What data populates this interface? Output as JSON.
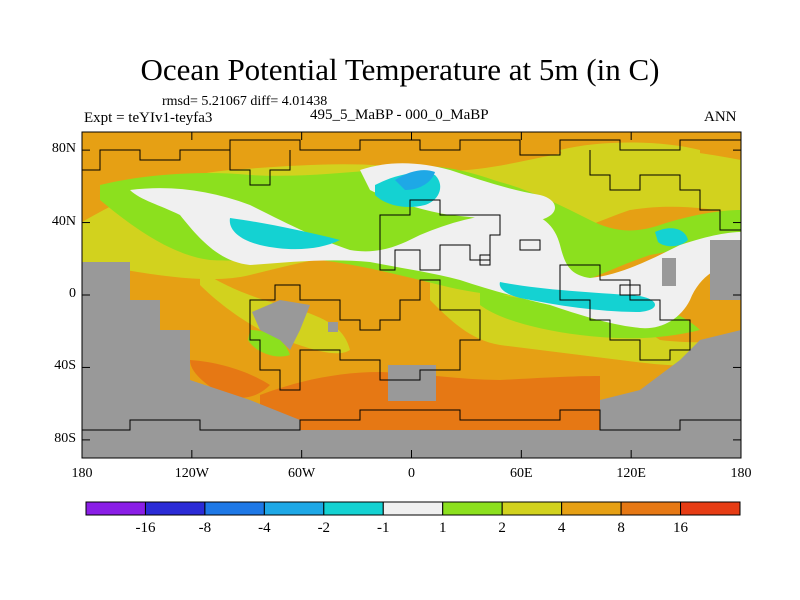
{
  "figure": {
    "title": "Ocean Potential Temperature at 5m (in C)",
    "stats": "rmsd= 5.21067 diff= 4.01438",
    "experiment": "Expt = teYIv1-teyfa3",
    "period": "495_5_MaBP - 000_0_MaBP",
    "season": "ANN"
  },
  "axes": {
    "y_ticks": [
      {
        "lat": 80,
        "label": "80N"
      },
      {
        "lat": 40,
        "label": "40N"
      },
      {
        "lat": 0,
        "label": "0"
      },
      {
        "lat": -40,
        "label": "40S"
      },
      {
        "lat": -80,
        "label": "80S"
      }
    ],
    "x_ticks": [
      {
        "lon": -180,
        "label": "180"
      },
      {
        "lon": -120,
        "label": "120W"
      },
      {
        "lon": -60,
        "label": "60W"
      },
      {
        "lon": 0,
        "label": "0"
      },
      {
        "lon": 60,
        "label": "60E"
      },
      {
        "lon": 120,
        "label": "120E"
      },
      {
        "lon": 180,
        "label": "180"
      }
    ],
    "lon_range": [
      -180,
      180
    ],
    "lat_range": [
      -90,
      90
    ]
  },
  "colorbar": {
    "colors": [
      "#8a1ee6",
      "#2b2bd6",
      "#1e78e6",
      "#1ea8e6",
      "#14d2d2",
      "#f0f0f0",
      "#8ce01e",
      "#d2d21e",
      "#e6a014",
      "#e67814",
      "#e63c14"
    ],
    "labels": [
      "-16",
      "-8",
      "-4",
      "-2",
      "-1",
      "1",
      "2",
      "4",
      "8",
      "16"
    ]
  },
  "map": {
    "land_color": "#999999",
    "fill_colors": {
      "orange": "#e6a014",
      "dark_orange": "#e67814",
      "yellow": "#d2d21e",
      "green": "#8ce01e",
      "white": "#f0f0f0",
      "cyan": "#14d2d2",
      "light_blue": "#1ea8e6"
    }
  }
}
